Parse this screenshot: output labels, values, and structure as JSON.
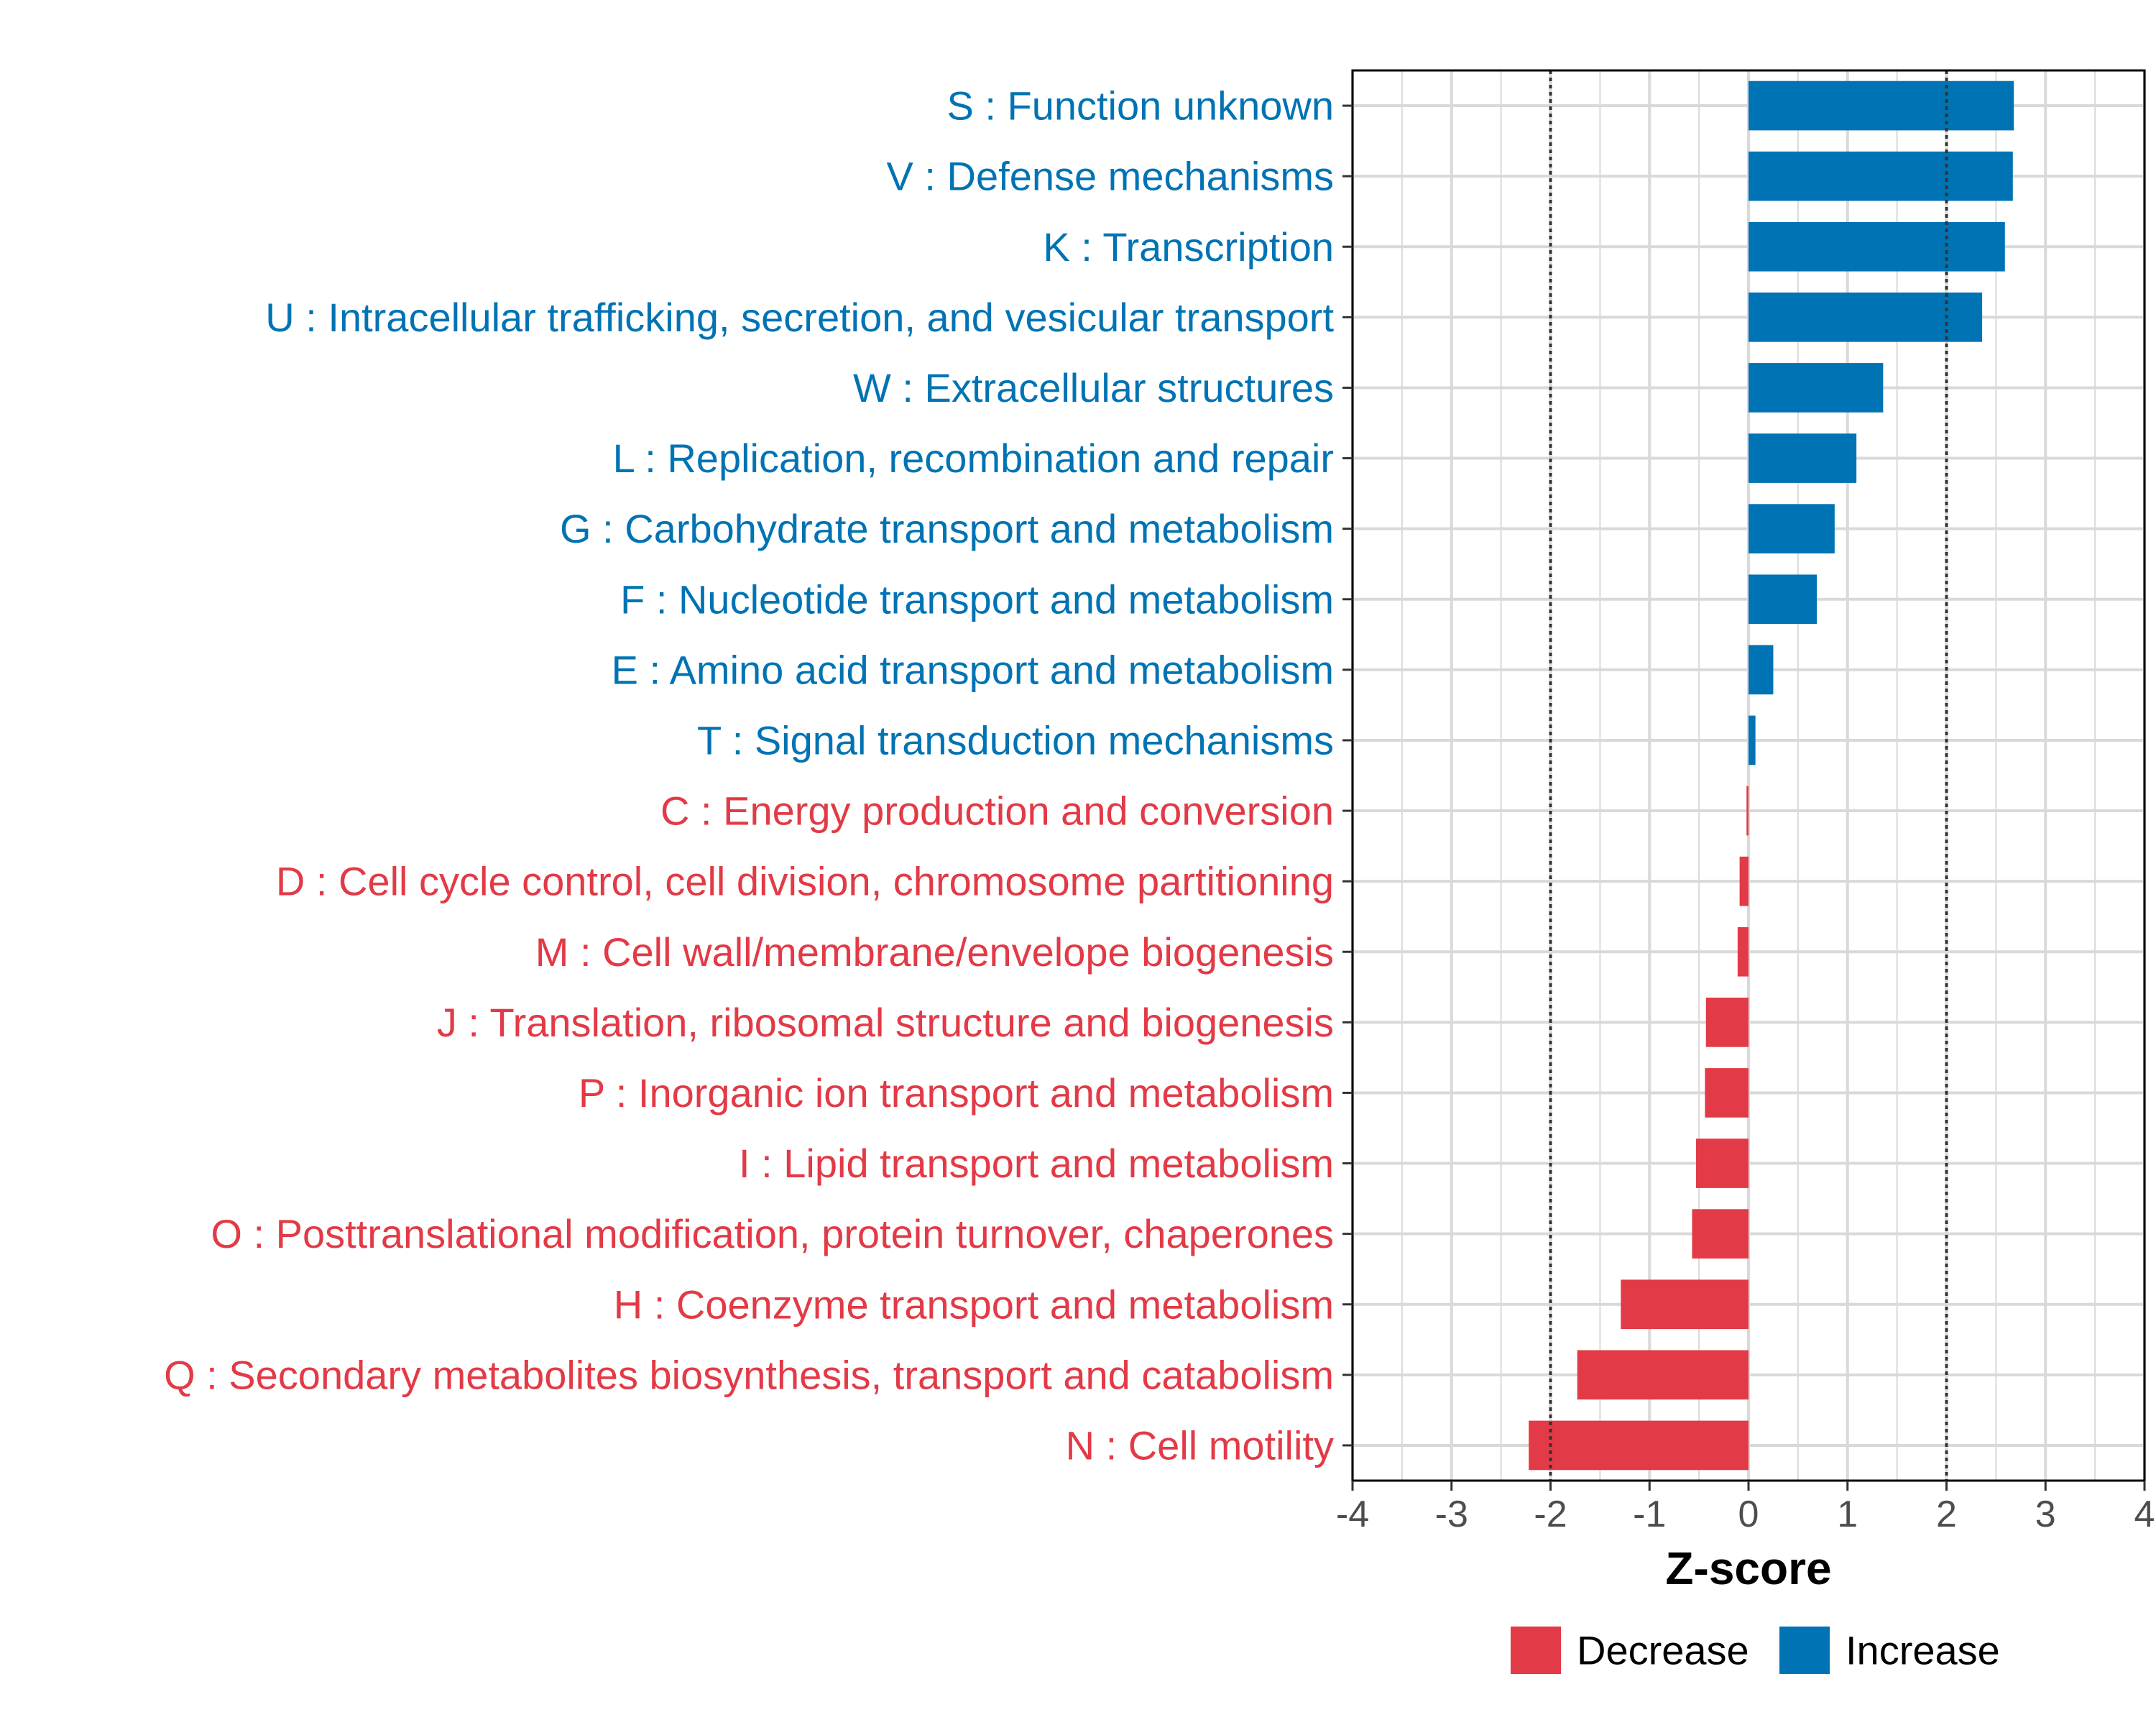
{
  "colors": {
    "decrease": "#E23A46",
    "increase": "#0073B4",
    "grid": "#d9d9d9",
    "axis": "#000000",
    "refline": "#333333"
  },
  "chart_data": {
    "type": "bar",
    "orientation": "horizontal",
    "xlabel": "Z-score",
    "ylabel": "",
    "xlim": [
      -4,
      4
    ],
    "xticks": [
      "-4",
      "-3",
      "-2",
      "-1",
      "0",
      "1",
      "2",
      "3",
      "4"
    ],
    "reference_lines": [
      -2,
      2
    ],
    "grid": true,
    "legend": {
      "position": "bottom",
      "entries": [
        "Decrease",
        "Increase"
      ]
    },
    "categories": [
      "S : Function unknown",
      "V : Defense mechanisms",
      "K : Transcription",
      "U : Intracellular trafficking, secretion, and vesicular transport",
      "W : Extracellular structures",
      "L : Replication, recombination and repair",
      "G : Carbohydrate transport and metabolism",
      "F : Nucleotide transport and metabolism",
      "E : Amino acid transport and metabolism",
      "T : Signal transduction mechanisms",
      "C : Energy production and conversion",
      "D : Cell cycle control, cell division, chromosome partitioning",
      "M : Cell wall/membrane/envelope biogenesis",
      "J : Translation, ribosomal structure and biogenesis",
      "P : Inorganic ion transport and metabolism",
      "I : Lipid transport and metabolism",
      "O : Posttranslational modification, protein turnover, chaperones",
      "H : Coenzyme transport and metabolism",
      "Q : Secondary metabolites biosynthesis, transport and catabolism",
      "N : Cell motility"
    ],
    "values": [
      2.68,
      2.67,
      2.59,
      2.36,
      1.36,
      1.09,
      0.87,
      0.69,
      0.25,
      0.07,
      -0.02,
      -0.09,
      -0.11,
      -0.43,
      -0.44,
      -0.53,
      -0.57,
      -1.29,
      -1.73,
      -2.22
    ],
    "groups": [
      "Increase",
      "Increase",
      "Increase",
      "Increase",
      "Increase",
      "Increase",
      "Increase",
      "Increase",
      "Increase",
      "Increase",
      "Decrease",
      "Decrease",
      "Decrease",
      "Decrease",
      "Decrease",
      "Decrease",
      "Decrease",
      "Decrease",
      "Decrease",
      "Decrease"
    ]
  }
}
